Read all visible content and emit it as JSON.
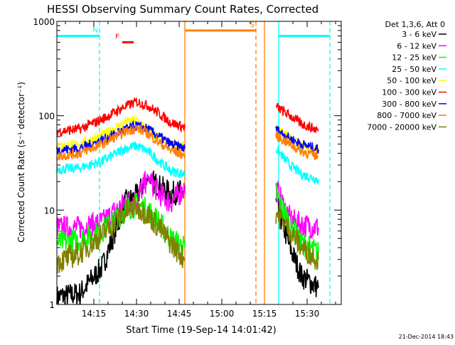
{
  "chart_data": {
    "type": "line",
    "title": "HESSI Observing Summary Count Rates, Corrected",
    "xlabel": "Start Time (19-Sep-14 14:01:42)",
    "ylabel": "Corrected Count Rate (s⁻¹ detector⁻¹)",
    "yscale": "log",
    "ylim": [
      1,
      1000
    ],
    "xlim": [
      "14:01:42",
      "15:40:00"
    ],
    "x_ticks": [
      "14:15",
      "14:30",
      "14:45",
      "15:00",
      "15:15",
      "15:30"
    ],
    "y_ticks": [
      "1",
      "10",
      "100",
      "1000"
    ],
    "footer_timestamp": "21-Dec-2014 18:43",
    "legend": {
      "header": "Det 1,3,6, Att 0",
      "placement": "right"
    },
    "series": [
      {
        "name": "3 - 6 keV",
        "color": "#000000",
        "x": [
          "14:02",
          "14:10",
          "14:18",
          "14:26",
          "14:30",
          "14:34",
          "14:38",
          "14:42",
          "14:47",
          "15:19",
          "15:24",
          "15:28",
          "15:34"
        ],
        "values": [
          1.2,
          1.3,
          2.5,
          12,
          14,
          22,
          18,
          15,
          16,
          12,
          4,
          2,
          1.5
        ]
      },
      {
        "name": "6 - 12 keV",
        "color": "#ff00ff",
        "x": [
          "14:02",
          "14:10",
          "14:18",
          "14:26",
          "14:30",
          "14:34",
          "14:38",
          "14:42",
          "14:47",
          "15:19",
          "15:24",
          "15:28",
          "15:34"
        ],
        "values": [
          6.5,
          6.5,
          7.5,
          12,
          13,
          22,
          15,
          12,
          17,
          17,
          8,
          7,
          6.5
        ]
      },
      {
        "name": "12 - 25 keV",
        "color": "#00ff00",
        "x": [
          "14:02",
          "14:10",
          "14:18",
          "14:26",
          "14:30",
          "14:34",
          "14:38",
          "14:42",
          "14:47",
          "15:19",
          "15:24",
          "15:28",
          "15:34"
        ],
        "values": [
          4.5,
          4.8,
          6,
          10,
          11.5,
          10,
          7.5,
          5,
          4,
          15,
          7,
          4.5,
          3.5
        ]
      },
      {
        "name": "25 - 50 keV",
        "color": "#00ffff",
        "x": [
          "14:02",
          "14:10",
          "14:18",
          "14:26",
          "14:30",
          "14:34",
          "14:38",
          "14:42",
          "14:47",
          "15:19",
          "15:24",
          "15:28",
          "15:34"
        ],
        "values": [
          27,
          28,
          33,
          45,
          48,
          42,
          33,
          26,
          24,
          45,
          30,
          24,
          21
        ]
      },
      {
        "name": "50 - 100 keV",
        "color": "#ffff00",
        "x": [
          "14:02",
          "14:10",
          "14:18",
          "14:26",
          "14:30",
          "14:34",
          "14:38",
          "14:42",
          "14:47",
          "15:19",
          "15:24",
          "15:28",
          "15:34"
        ],
        "values": [
          47,
          50,
          62,
          85,
          90,
          72,
          57,
          50,
          47,
          72,
          58,
          48,
          42
        ]
      },
      {
        "name": "100 - 300 keV",
        "color": "#ff0000",
        "x": [
          "14:02",
          "14:10",
          "14:18",
          "14:26",
          "14:30",
          "14:34",
          "14:38",
          "14:42",
          "14:47",
          "15:19",
          "15:24",
          "15:28",
          "15:34"
        ],
        "values": [
          68,
          72,
          92,
          125,
          140,
          128,
          105,
          85,
          75,
          125,
          100,
          82,
          70
        ]
      },
      {
        "name": "300 - 800 keV",
        "color": "#0000ff",
        "x": [
          "14:02",
          "14:10",
          "14:18",
          "14:26",
          "14:30",
          "14:34",
          "14:38",
          "14:42",
          "14:47",
          "15:19",
          "15:24",
          "15:28",
          "15:34"
        ],
        "values": [
          43,
          45,
          55,
          72,
          78,
          72,
          60,
          50,
          45,
          72,
          57,
          50,
          44
        ]
      },
      {
        "name": "800 - 7000 keV",
        "color": "#ff8000",
        "x": [
          "14:02",
          "14:10",
          "14:18",
          "14:26",
          "14:30",
          "14:34",
          "14:38",
          "14:42",
          "14:47",
          "15:19",
          "15:24",
          "15:28",
          "15:34"
        ],
        "values": [
          37,
          40,
          50,
          68,
          74,
          65,
          52,
          43,
          38,
          62,
          50,
          42,
          37
        ]
      },
      {
        "name": "7000 - 20000 keV",
        "color": "#808000",
        "x": [
          "14:02",
          "14:10",
          "14:18",
          "14:26",
          "14:30",
          "14:34",
          "14:38",
          "14:42",
          "14:47",
          "15:19",
          "15:24",
          "15:28",
          "15:34"
        ],
        "values": [
          2.8,
          3.5,
          5.5,
          9.5,
          11,
          9,
          6.5,
          4.5,
          3,
          9.5,
          6,
          4,
          3
        ]
      }
    ],
    "annotations": [
      {
        "label": "N",
        "color": "#00ffff",
        "x_start": "14:01:42",
        "x_end": "14:17:00",
        "y": 700
      },
      {
        "label": "F",
        "color": "#ff0000",
        "x_start": "14:25:00",
        "x_end": "14:29:00",
        "y": 600
      },
      {
        "label": "S",
        "color": "#ff8000",
        "x_start": "14:47:00",
        "x_end": "15:12:00",
        "y": 800
      },
      {
        "label": "",
        "color": "#00ffff",
        "x_start": "15:20:00",
        "x_end": "15:38:00",
        "y": 700
      }
    ],
    "markers": [
      {
        "x": "14:17:00",
        "color": "#00ffff",
        "style": "dashed"
      },
      {
        "x": "14:47:00",
        "color": "#ff8000",
        "style": "solid"
      },
      {
        "x": "15:12:00",
        "color": "#ff8000",
        "style": "dashed"
      },
      {
        "x": "15:15:00",
        "color": "#ff8000",
        "style": "solid"
      },
      {
        "x": "15:20:00",
        "color": "#00ffff",
        "style": "solid"
      },
      {
        "x": "15:38:00",
        "color": "#00ffff",
        "style": "dashed"
      }
    ]
  }
}
